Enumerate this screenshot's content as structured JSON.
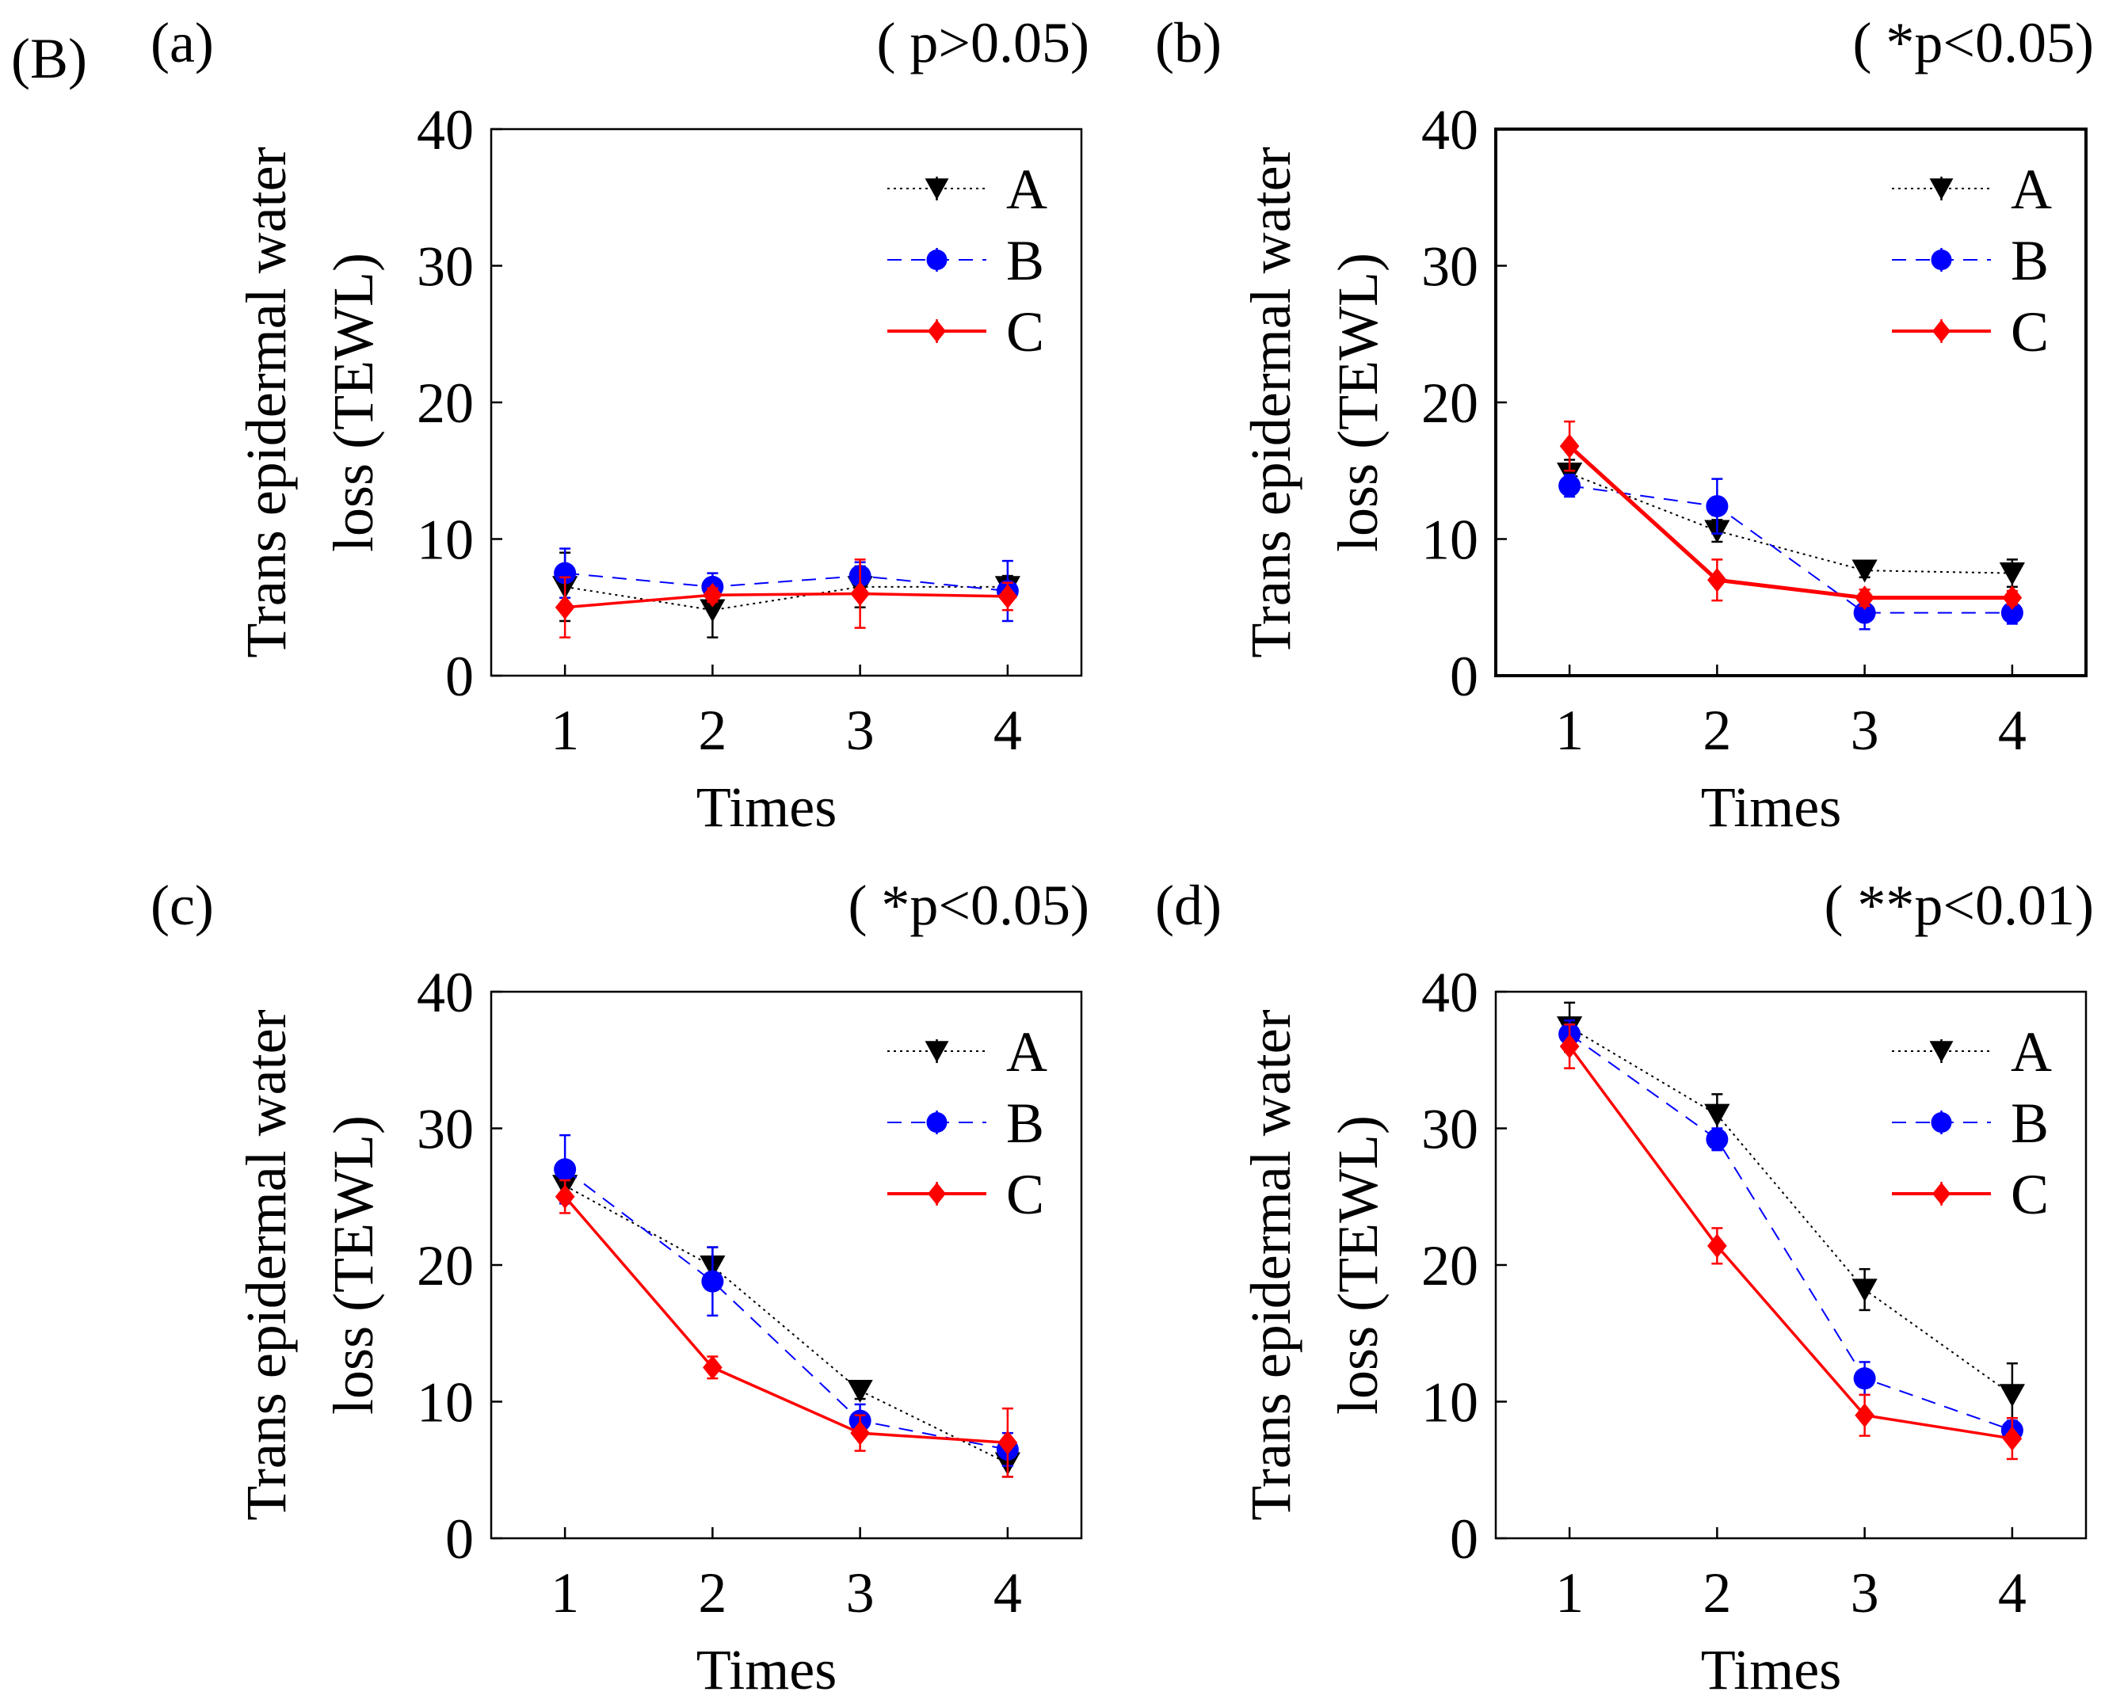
{
  "figure_label": "(B)",
  "series_styles": {
    "A": {
      "color": "#000000",
      "marker": "triangle-down",
      "line": "dotted"
    },
    "B": {
      "color": "#0000ff",
      "marker": "circle",
      "line": "dashed"
    },
    "C": {
      "color": "#ff0000",
      "marker": "diamond",
      "line": "solid"
    }
  },
  "chart_data": [
    {
      "type": "line",
      "panel": "(a)",
      "annotation": "( p>0.05)",
      "xlabel": "Times",
      "ylabel_lines": [
        "Trans epidermal water",
        "loss (TEWL)"
      ],
      "x": [
        1,
        2,
        3,
        4
      ],
      "xticks": [
        "1",
        "2",
        "3",
        "4"
      ],
      "xlim": [
        0.5,
        4.5
      ],
      "ylim": [
        0,
        40
      ],
      "yticks": [
        "0",
        "10",
        "20",
        "30",
        "40"
      ],
      "legend": [
        "A",
        "B",
        "C"
      ],
      "series": [
        {
          "name": "A",
          "values": [
            6.5,
            4.8,
            6.5,
            6.5
          ],
          "err": [
            2.5,
            2.0,
            1.5,
            0.8
          ]
        },
        {
          "name": "B",
          "values": [
            7.5,
            6.5,
            7.3,
            6.2
          ],
          "err": [
            1.8,
            1.0,
            1.0,
            2.2
          ]
        },
        {
          "name": "C",
          "values": [
            5.0,
            5.9,
            6.0,
            5.8
          ],
          "err": [
            2.2,
            0.5,
            2.5,
            1.0
          ]
        }
      ]
    },
    {
      "type": "line",
      "panel": "(b)",
      "annotation": "( *p<0.05)",
      "xlabel": "Times",
      "ylabel_lines": [
        "Trans epidermal water",
        "loss (TEWL)"
      ],
      "x": [
        1,
        2,
        3,
        4
      ],
      "xticks": [
        "1",
        "2",
        "3",
        "4"
      ],
      "xlim": [
        0.5,
        4.5
      ],
      "ylim": [
        0,
        40
      ],
      "yticks": [
        "0",
        "10",
        "20",
        "30",
        "40"
      ],
      "legend": [
        "A",
        "B",
        "C"
      ],
      "series": [
        {
          "name": "A",
          "values": [
            14.8,
            10.6,
            7.7,
            7.5
          ],
          "err": [
            1.0,
            0.8,
            0.5,
            1.0
          ]
        },
        {
          "name": "B",
          "values": [
            13.9,
            12.4,
            4.6,
            4.6
          ],
          "err": [
            0.8,
            2.0,
            1.2,
            0.8
          ]
        },
        {
          "name": "C",
          "values": [
            16.8,
            7.0,
            5.7,
            5.7
          ],
          "err": [
            1.8,
            1.5,
            0.6,
            0.5
          ]
        }
      ]
    },
    {
      "type": "line",
      "panel": "(c)",
      "annotation": "( *p<0.05)",
      "xlabel": "Times",
      "ylabel_lines": [
        "Trans epidermal water",
        "loss (TEWL)"
      ],
      "x": [
        1,
        2,
        3,
        4
      ],
      "xticks": [
        "1",
        "2",
        "3",
        "4"
      ],
      "xlim": [
        0.5,
        4.5
      ],
      "ylim": [
        0,
        40
      ],
      "yticks": [
        "0",
        "10",
        "20",
        "30",
        "40"
      ],
      "legend": [
        "A",
        "B",
        "C"
      ],
      "series": [
        {
          "name": "A",
          "values": [
            25.8,
            19.9,
            10.8,
            5.5
          ],
          "err": [
            1.0,
            1.4,
            0.6,
            1.0
          ]
        },
        {
          "name": "B",
          "values": [
            27.0,
            18.8,
            8.6,
            6.5
          ],
          "err": [
            2.5,
            2.5,
            1.2,
            1.2
          ]
        },
        {
          "name": "C",
          "values": [
            25.0,
            12.5,
            7.7,
            7.0
          ],
          "err": [
            1.2,
            0.8,
            1.3,
            2.5
          ]
        }
      ]
    },
    {
      "type": "line",
      "panel": "(d)",
      "annotation": "( **p<0.01)",
      "xlabel": "Times",
      "ylabel_lines": [
        "Trans epidermal water",
        "loss (TEWL)"
      ],
      "x": [
        1,
        2,
        3,
        4
      ],
      "xticks": [
        "1",
        "2",
        "3",
        "4"
      ],
      "xlim": [
        0.5,
        4.5
      ],
      "ylim": [
        0,
        40
      ],
      "yticks": [
        "0",
        "10",
        "20",
        "30",
        "40"
      ],
      "legend": [
        "A",
        "B",
        "C"
      ],
      "series": [
        {
          "name": "A",
          "values": [
            37.4,
            31.0,
            18.2,
            10.5
          ],
          "err": [
            1.8,
            1.5,
            1.5,
            2.3
          ]
        },
        {
          "name": "B",
          "values": [
            36.9,
            29.2,
            11.7,
            7.9
          ],
          "err": [
            1.0,
            0.8,
            1.2,
            0.7
          ]
        },
        {
          "name": "C",
          "values": [
            36.0,
            21.4,
            9.0,
            7.3
          ],
          "err": [
            1.6,
            1.3,
            1.5,
            1.5
          ]
        }
      ]
    }
  ]
}
